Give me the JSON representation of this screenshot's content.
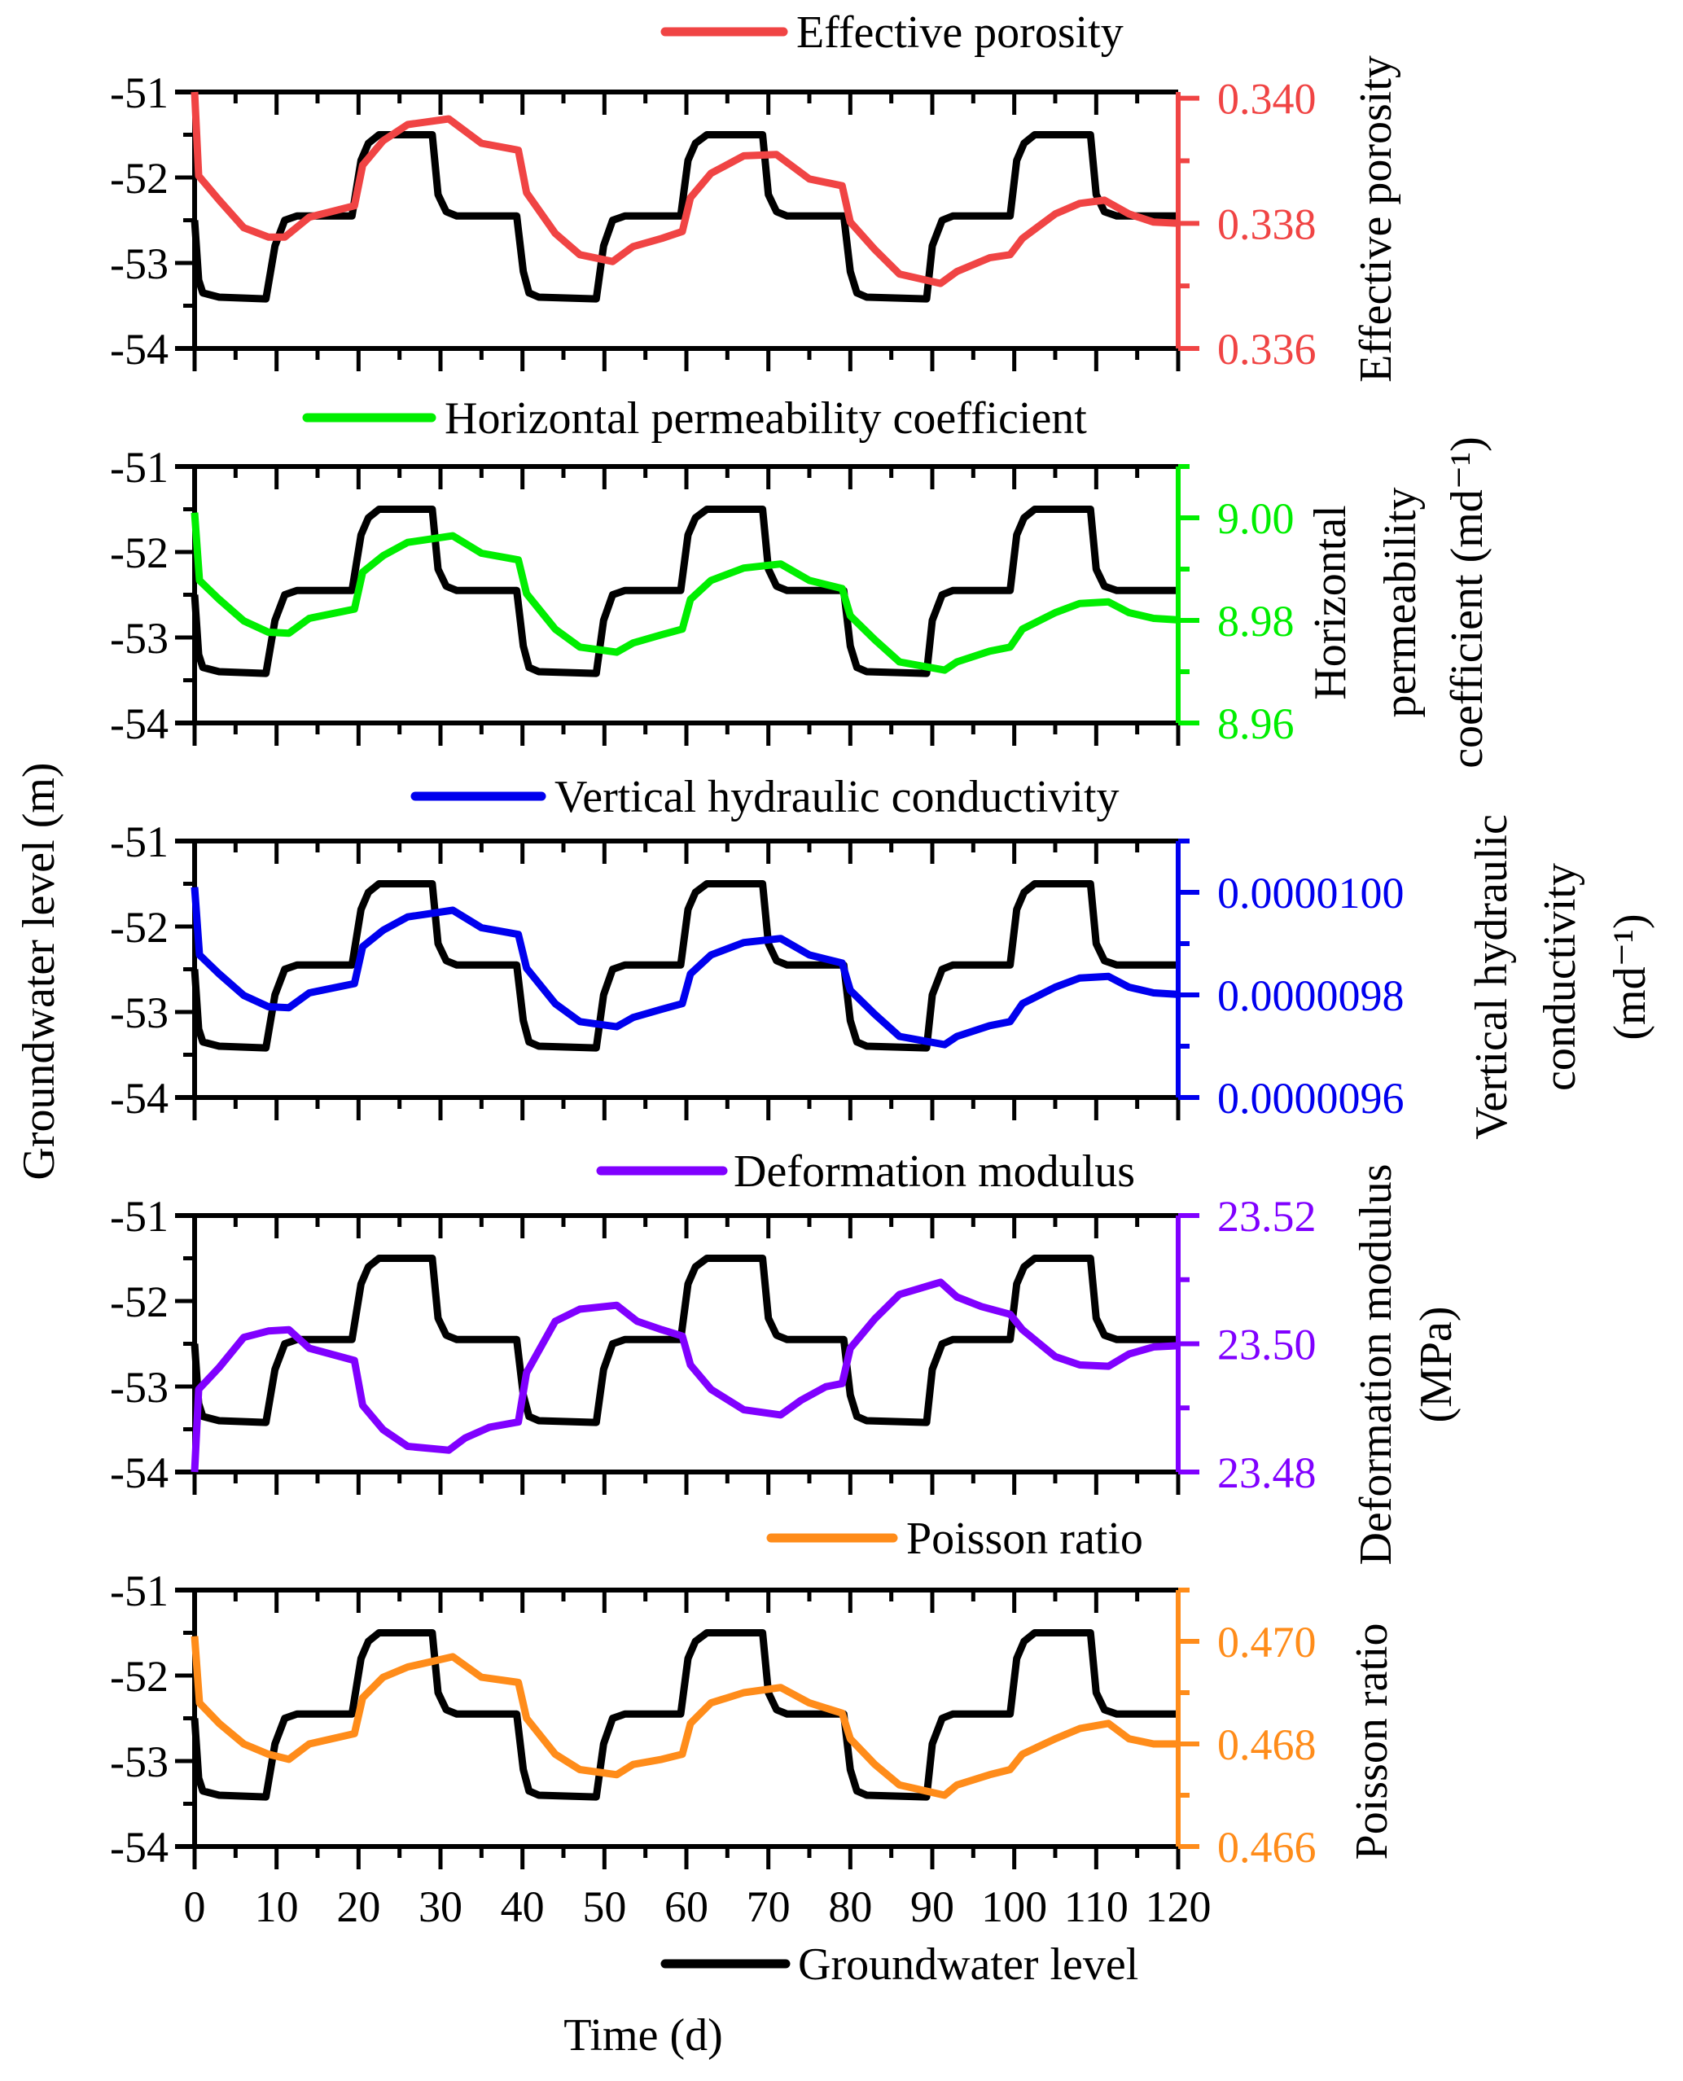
{
  "chart_data": {
    "type": "line",
    "layout": "five vertically stacked panels sharing x-axis, each with dual y-axes",
    "xlabel": "Time (d)",
    "xlim": [
      0,
      120
    ],
    "x_ticks": [
      0,
      10,
      20,
      30,
      40,
      50,
      60,
      70,
      80,
      90,
      100,
      110,
      120
    ],
    "x_tick_labels": [
      "0",
      "10",
      "20",
      "30",
      "40",
      "50",
      "60",
      "70",
      "80",
      "90",
      "100",
      "110",
      "120"
    ],
    "left_axis": {
      "label": "Groundwater level (m)",
      "ylim": [
        -54,
        -51
      ],
      "ticks": [
        -51,
        -52,
        -53,
        -54
      ],
      "tick_labels": [
        "-51",
        "-52",
        "-53",
        "-54"
      ]
    },
    "groundwater_legend": "Groundwater level",
    "groundwater_color": "#000000",
    "groundwater_level": {
      "name": "Groundwater level",
      "x": [
        0,
        0.5,
        1,
        3,
        8.7,
        9.8,
        11,
        12.5,
        19.2,
        20.3,
        21.2,
        22.5,
        29,
        29.7,
        30.7,
        32,
        39.3,
        40.1,
        40.8,
        42,
        49,
        49.9,
        51,
        52.5,
        59.3,
        60.2,
        61.1,
        62.5,
        69.3,
        70,
        71,
        72.3,
        79.2,
        80,
        80.8,
        82,
        89.3,
        90,
        91.2,
        92.5,
        99.5,
        100.3,
        101.2,
        102.5,
        109.3,
        110,
        111,
        112.5,
        120
      ],
      "y": [
        -52.5,
        -53.2,
        -53.35,
        -53.4,
        -53.42,
        -52.8,
        -52.5,
        -52.45,
        -52.45,
        -51.8,
        -51.6,
        -51.5,
        -51.5,
        -52.2,
        -52.4,
        -52.45,
        -52.45,
        -53.1,
        -53.35,
        -53.4,
        -53.42,
        -52.8,
        -52.5,
        -52.45,
        -52.45,
        -51.8,
        -51.6,
        -51.5,
        -51.5,
        -52.2,
        -52.4,
        -52.45,
        -52.45,
        -53.1,
        -53.35,
        -53.4,
        -53.42,
        -52.8,
        -52.5,
        -52.45,
        -52.45,
        -51.8,
        -51.6,
        -51.5,
        -51.5,
        -52.2,
        -52.4,
        -52.45,
        -52.45
      ]
    },
    "panels": [
      {
        "name": "Effective porosity",
        "legend": "Effective porosity",
        "color": "#f04444",
        "right_label_lines": [
          "Effective porosity"
        ],
        "ylim": [
          0.336,
          0.3401
        ],
        "ticks": [
          0.336,
          0.338,
          0.34
        ],
        "tick_labels": [
          "0.336",
          "0.338",
          "0.340"
        ],
        "minor_ticks": [
          0.337,
          0.339
        ],
        "x": [
          0,
          0.5,
          3,
          6,
          9,
          11,
          14,
          19.5,
          20.5,
          23,
          26,
          31,
          35,
          39.5,
          40.5,
          44,
          47,
          51,
          53.5,
          57,
          59.5,
          60.5,
          63,
          67,
          71,
          75,
          79,
          80,
          83,
          86,
          91,
          93,
          97,
          99.5,
          101,
          105,
          108,
          111,
          114,
          117,
          120
        ],
        "y": [
          0.3401,
          0.33876,
          0.33837,
          0.33793,
          0.33778,
          0.33778,
          0.3381,
          0.33828,
          0.33893,
          0.33932,
          0.33958,
          0.33967,
          0.33928,
          0.33917,
          0.33849,
          0.33784,
          0.3375,
          0.33739,
          0.33763,
          0.33776,
          0.33787,
          0.33841,
          0.3388,
          0.33908,
          0.3391,
          0.33871,
          0.3386,
          0.33802,
          0.33758,
          0.33719,
          0.33704,
          0.33723,
          0.33745,
          0.3375,
          0.33776,
          0.33815,
          0.33832,
          0.33837,
          0.33815,
          0.33802,
          0.338
        ]
      },
      {
        "name": "Horizontal permeability coefficient",
        "legend": "Horizontal permeability coefficient",
        "color": "#00ee00",
        "right_label_lines": [
          "Horizontal",
          "permeability",
          "coefficient (md⁻¹)"
        ],
        "ylim": [
          8.96,
          9.01
        ],
        "ticks": [
          8.96,
          8.98,
          9.0
        ],
        "tick_labels": [
          "8.96",
          "8.98",
          "9.00"
        ],
        "minor_ticks": [
          8.97,
          8.99,
          9.01
        ],
        "x": [
          0,
          0.6,
          3,
          6,
          9,
          11.5,
          14,
          19.5,
          20.5,
          23,
          26,
          31.5,
          35,
          39.5,
          40.5,
          44,
          47,
          51.5,
          53.5,
          57,
          59.5,
          60.5,
          63,
          67,
          71.5,
          75,
          79,
          80,
          83,
          86,
          91.5,
          93,
          97,
          99.5,
          101,
          105,
          108,
          111.5,
          114,
          117,
          120
        ],
        "y": [
          9.001,
          8.9878,
          8.9841,
          8.9799,
          8.9777,
          8.9775,
          8.9804,
          8.9822,
          8.9894,
          8.9926,
          8.9952,
          8.9965,
          8.9931,
          8.9918,
          8.9852,
          8.9783,
          8.9748,
          8.9738,
          8.9756,
          8.9772,
          8.9783,
          8.9841,
          8.9878,
          8.9902,
          8.991,
          8.9878,
          8.9862,
          8.9809,
          8.9762,
          8.9719,
          8.9703,
          8.9719,
          8.974,
          8.9748,
          8.9783,
          8.9815,
          8.9833,
          8.9836,
          8.9815,
          8.9804,
          8.9801
        ]
      },
      {
        "name": "Vertical hydraulic conductivity",
        "legend": "Vertical hydraulic conductivity",
        "color": "#0000ee",
        "right_label_lines": [
          "Vertical hydraulic",
          "conductivity",
          "(md⁻¹)"
        ],
        "ylim": [
          9.6e-06,
          1.01e-05
        ],
        "ticks": [
          9.6e-06,
          9.8e-06,
          1e-05
        ],
        "tick_labels": [
          "0.0000096",
          "0.0000098",
          "0.0000100"
        ],
        "minor_ticks": [
          9.7e-06,
          9.9e-06,
          1.01e-05
        ],
        "x": [
          0,
          0.6,
          3,
          6,
          9,
          11.5,
          14,
          19.5,
          20.5,
          23,
          26,
          31.5,
          35,
          39.5,
          40.5,
          44,
          47,
          51.5,
          53.5,
          57,
          59.5,
          60.5,
          63,
          67,
          71.5,
          75,
          79,
          80,
          83,
          86,
          91.5,
          93,
          97,
          99.5,
          101,
          105,
          108,
          111.5,
          114,
          117,
          120
        ],
        "y": [
          1.001e-05,
          9.878e-06,
          9.841e-06,
          9.799e-06,
          9.777e-06,
          9.775e-06,
          9.804e-06,
          9.822e-06,
          9.894e-06,
          9.926e-06,
          9.952e-06,
          9.965e-06,
          9.931e-06,
          9.918e-06,
          9.852e-06,
          9.783e-06,
          9.748e-06,
          9.738e-06,
          9.756e-06,
          9.772e-06,
          9.783e-06,
          9.841e-06,
          9.878e-06,
          9.902e-06,
          9.91e-06,
          9.878e-06,
          9.862e-06,
          9.809e-06,
          9.762e-06,
          9.719e-06,
          9.703e-06,
          9.719e-06,
          9.74e-06,
          9.748e-06,
          9.783e-06,
          9.815e-06,
          9.833e-06,
          9.836e-06,
          9.815e-06,
          9.804e-06,
          9.801e-06
        ]
      },
      {
        "name": "Deformation modulus",
        "legend": "Deformation modulus",
        "color": "#8000ff",
        "right_label_lines": [
          "Deformation modulus",
          "(MPa)"
        ],
        "ylim": [
          23.48,
          23.52
        ],
        "ticks": [
          23.48,
          23.5,
          23.52
        ],
        "tick_labels": [
          "23.48",
          "23.50",
          "23.52"
        ],
        "minor_ticks": [
          23.49,
          23.51
        ],
        "x": [
          0,
          0.5,
          3,
          6,
          9,
          11.5,
          14,
          19.5,
          20.5,
          23,
          26,
          31,
          33,
          36,
          39.5,
          40.5,
          44,
          47,
          51.5,
          54,
          57,
          59.5,
          60.5,
          63,
          67,
          71.5,
          74,
          77,
          79,
          80,
          83,
          86,
          91,
          93,
          96,
          99.5,
          101,
          105,
          108,
          111.5,
          114,
          117,
          120
        ],
        "y": [
          23.48,
          23.4929,
          23.4963,
          23.501,
          23.502,
          23.5022,
          23.4993,
          23.4974,
          23.4904,
          23.4866,
          23.484,
          23.4834,
          23.4853,
          23.487,
          23.4878,
          23.4955,
          23.5035,
          23.5054,
          23.506,
          23.5035,
          23.5022,
          23.5012,
          23.4967,
          23.4929,
          23.4897,
          23.4889,
          23.4912,
          23.4933,
          23.4938,
          23.4993,
          23.5039,
          23.5077,
          23.5096,
          23.5073,
          23.5058,
          23.5046,
          23.5022,
          23.498,
          23.4967,
          23.4965,
          23.4984,
          23.4995,
          23.4997
        ]
      },
      {
        "name": "Poisson ratio",
        "legend": "Poisson ratio",
        "color": "#ff8c1a",
        "right_label_lines": [
          "Poisson ratio"
        ],
        "ylim": [
          0.466,
          0.471
        ],
        "ticks": [
          0.466,
          0.468,
          0.47
        ],
        "tick_labels": [
          "0.466",
          "0.468",
          "0.470"
        ],
        "minor_ticks": [
          0.467,
          0.469,
          0.471
        ],
        "x": [
          0,
          0.6,
          3,
          6,
          9,
          11.5,
          14,
          19.5,
          20.5,
          23,
          26,
          31.5,
          35,
          39.5,
          40.5,
          44,
          47,
          51.5,
          53.5,
          57,
          59.5,
          60.5,
          63,
          67,
          71.5,
          75,
          79,
          80,
          83,
          86,
          91.5,
          93,
          97,
          99.5,
          101,
          105,
          108,
          111.5,
          114,
          117,
          120
        ],
        "y": [
          0.4701,
          0.4688,
          0.4684,
          0.468,
          0.4678,
          0.4677,
          0.468,
          0.4682,
          0.4689,
          0.4693,
          0.4695,
          0.4697,
          0.4693,
          0.4692,
          0.4685,
          0.4678,
          0.4675,
          0.4674,
          0.4676,
          0.4677,
          0.4678,
          0.4684,
          0.4688,
          0.469,
          0.4691,
          0.4688,
          0.4686,
          0.4681,
          0.4676,
          0.4672,
          0.467,
          0.4672,
          0.4674,
          0.4675,
          0.4678,
          0.4681,
          0.4683,
          0.4684,
          0.4681,
          0.468,
          0.468
        ]
      }
    ]
  }
}
